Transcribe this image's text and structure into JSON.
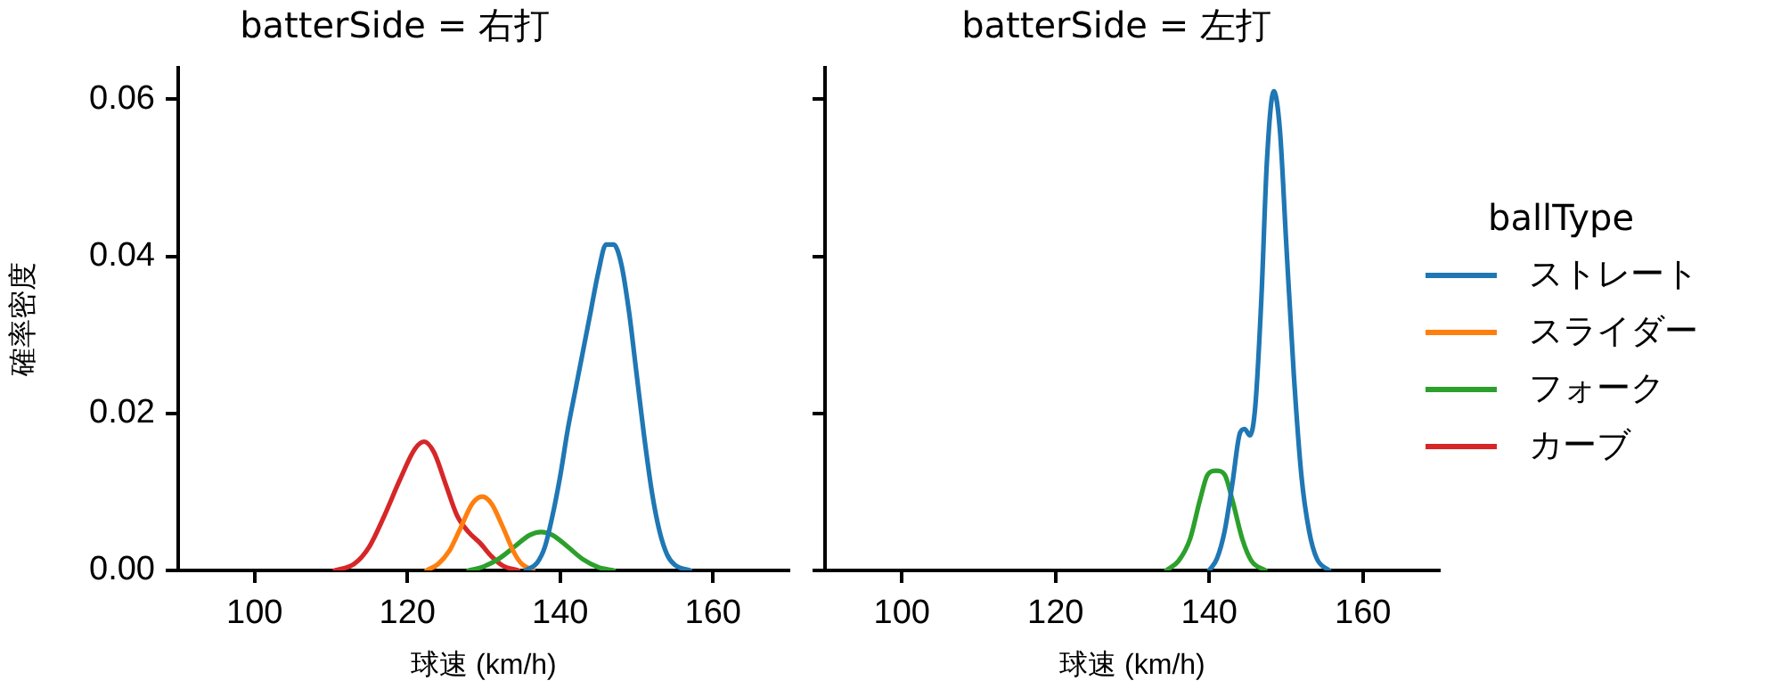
{
  "chart_data": [
    {
      "type": "line",
      "title": "batterSide = 右打",
      "xlabel": "球速 (km/h)",
      "ylabel": "確率密度",
      "xlim": [
        90,
        170
      ],
      "xticks": [
        100,
        120,
        140,
        160
      ],
      "ylim": [
        0,
        0.064
      ],
      "yticks": [
        {
          "value": 0,
          "label": "0.00"
        },
        {
          "value": 0.02,
          "label": "0.02"
        },
        {
          "value": 0.04,
          "label": "0.04"
        },
        {
          "value": 0.06,
          "label": "0.06"
        }
      ],
      "grid": false,
      "legend": "right",
      "legend_title": "ballType",
      "marker": "none",
      "line_style": "solid",
      "series": [
        {
          "name": "ストレート",
          "color": "#1f77b4",
          "x": [
            135.5,
            137,
            138,
            139,
            140,
            141,
            142,
            143,
            144,
            145,
            146,
            147,
            148,
            149,
            150,
            151,
            152,
            153,
            154,
            155,
            157
          ],
          "values": [
            0,
            0.001,
            0.003,
            0.007,
            0.012,
            0.018,
            0.023,
            0.028,
            0.033,
            0.038,
            0.0415,
            0.0415,
            0.039,
            0.033,
            0.025,
            0.017,
            0.01,
            0.005,
            0.002,
            0.0007,
            0
          ]
        },
        {
          "name": "スライダー",
          "color": "#ff7f0e",
          "x": [
            122.5,
            124,
            125.5,
            127,
            128.5,
            129.8,
            131,
            132.5,
            134,
            135,
            136.5
          ],
          "values": [
            0,
            0.0008,
            0.0025,
            0.0055,
            0.0085,
            0.0094,
            0.0085,
            0.0055,
            0.0022,
            0.0008,
            0
          ]
        },
        {
          "name": "フォーク",
          "color": "#2ca02c",
          "x": [
            128,
            130,
            132,
            134,
            136,
            137.5,
            139,
            141,
            143,
            145,
            147
          ],
          "values": [
            0,
            0.0005,
            0.0015,
            0.003,
            0.0045,
            0.0049,
            0.0045,
            0.003,
            0.0014,
            0.0004,
            0
          ]
        },
        {
          "name": "カーブ",
          "color": "#d62728",
          "x": [
            110.5,
            113,
            115,
            117,
            119,
            121,
            122.2,
            123.5,
            125,
            126.5,
            128,
            129.5,
            131,
            132.5,
            134.5
          ],
          "values": [
            0,
            0.0008,
            0.003,
            0.007,
            0.0115,
            0.0155,
            0.0164,
            0.015,
            0.011,
            0.007,
            0.0049,
            0.0035,
            0.0018,
            0.0006,
            0
          ]
        }
      ]
    },
    {
      "type": "line",
      "title": "batterSide = 左打",
      "xlabel": "球速 (km/h)",
      "xlim": [
        90,
        170
      ],
      "xticks": [
        100,
        120,
        140,
        160
      ],
      "ylim": [
        0,
        0.064
      ],
      "yticks": [
        {
          "value": 0,
          "label": null
        },
        {
          "value": 0.02,
          "label": null
        },
        {
          "value": 0.04,
          "label": null
        },
        {
          "value": 0.06,
          "label": null
        }
      ],
      "tick_labels": "x",
      "grid": false,
      "legend": "right",
      "marker": "none",
      "line_style": "solid",
      "series": [
        {
          "name": "ストレート",
          "color": "#1f77b4",
          "x": [
            140,
            141,
            142,
            143,
            144,
            144.6,
            145.3,
            146,
            146.8,
            147.5,
            148.4,
            149.2,
            150,
            151,
            152,
            153,
            154,
            155.6
          ],
          "values": [
            0,
            0.0015,
            0.005,
            0.011,
            0.0175,
            0.018,
            0.0172,
            0.021,
            0.035,
            0.052,
            0.061,
            0.056,
            0.042,
            0.025,
            0.012,
            0.005,
            0.0015,
            0
          ]
        },
        {
          "name": "フォーク",
          "color": "#2ca02c",
          "x": [
            134.4,
            136,
            137.5,
            138.8,
            139.8,
            140.9,
            142,
            143,
            144.3,
            145.5,
            147.3
          ],
          "values": [
            0,
            0.0012,
            0.004,
            0.009,
            0.0122,
            0.0127,
            0.0122,
            0.009,
            0.004,
            0.0012,
            0
          ]
        }
      ]
    }
  ]
}
